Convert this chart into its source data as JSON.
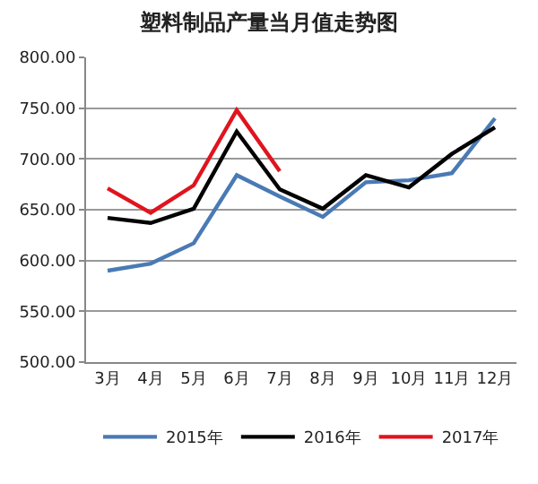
{
  "chart_data": {
    "type": "line",
    "title": "塑料制品产量当月值走势图",
    "categories": [
      "3月",
      "4月",
      "5月",
      "6月",
      "7月",
      "8月",
      "9月",
      "10月",
      "11月",
      "12月"
    ],
    "series": [
      {
        "name": "2015年",
        "color": "#4a7ab5",
        "values": [
          590,
          597,
          617,
          684,
          663,
          643,
          677,
          679,
          686,
          740
        ]
      },
      {
        "name": "2016年",
        "color": "#000000",
        "values": [
          642,
          637,
          651,
          727,
          670,
          651,
          684,
          672,
          705,
          731
        ]
      },
      {
        "name": "2017年",
        "color": "#e0141e",
        "values": [
          671,
          647,
          674,
          748,
          688,
          null,
          null,
          null,
          null,
          null
        ]
      }
    ],
    "ylim": [
      500,
      800
    ],
    "yticks": [
      {
        "value": 500,
        "label": "500.00"
      },
      {
        "value": 550,
        "label": "550.00"
      },
      {
        "value": 600,
        "label": "600.00"
      },
      {
        "value": 650,
        "label": "650.00"
      },
      {
        "value": 700,
        "label": "700.00"
      },
      {
        "value": 750,
        "label": "750.00"
      },
      {
        "value": 800,
        "label": "800.00"
      }
    ],
    "grid": "y",
    "legend": "bottom",
    "marker": "none",
    "line_style": "solid"
  }
}
